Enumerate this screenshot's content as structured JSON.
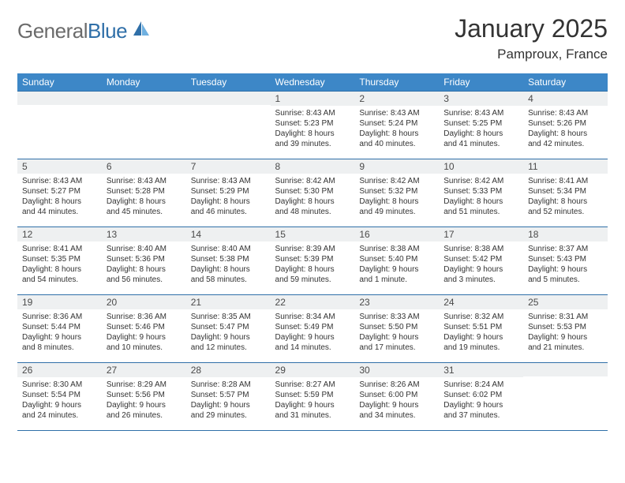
{
  "brand": {
    "part1": "General",
    "part2": "Blue"
  },
  "title": "January 2025",
  "location": "Pamproux, France",
  "colors": {
    "header_bg": "#3d87c7",
    "border": "#2f6fa8",
    "daynum_bg": "#eef0f1",
    "text": "#333333",
    "logo_gray": "#6b6b6b",
    "logo_blue": "#2f6fa8"
  },
  "dayHeaders": [
    "Sunday",
    "Monday",
    "Tuesday",
    "Wednesday",
    "Thursday",
    "Friday",
    "Saturday"
  ],
  "weeks": [
    [
      {
        "num": "",
        "lines": []
      },
      {
        "num": "",
        "lines": []
      },
      {
        "num": "",
        "lines": []
      },
      {
        "num": "1",
        "lines": [
          "Sunrise: 8:43 AM",
          "Sunset: 5:23 PM",
          "Daylight: 8 hours",
          "and 39 minutes."
        ]
      },
      {
        "num": "2",
        "lines": [
          "Sunrise: 8:43 AM",
          "Sunset: 5:24 PM",
          "Daylight: 8 hours",
          "and 40 minutes."
        ]
      },
      {
        "num": "3",
        "lines": [
          "Sunrise: 8:43 AM",
          "Sunset: 5:25 PM",
          "Daylight: 8 hours",
          "and 41 minutes."
        ]
      },
      {
        "num": "4",
        "lines": [
          "Sunrise: 8:43 AM",
          "Sunset: 5:26 PM",
          "Daylight: 8 hours",
          "and 42 minutes."
        ]
      }
    ],
    [
      {
        "num": "5",
        "lines": [
          "Sunrise: 8:43 AM",
          "Sunset: 5:27 PM",
          "Daylight: 8 hours",
          "and 44 minutes."
        ]
      },
      {
        "num": "6",
        "lines": [
          "Sunrise: 8:43 AM",
          "Sunset: 5:28 PM",
          "Daylight: 8 hours",
          "and 45 minutes."
        ]
      },
      {
        "num": "7",
        "lines": [
          "Sunrise: 8:43 AM",
          "Sunset: 5:29 PM",
          "Daylight: 8 hours",
          "and 46 minutes."
        ]
      },
      {
        "num": "8",
        "lines": [
          "Sunrise: 8:42 AM",
          "Sunset: 5:30 PM",
          "Daylight: 8 hours",
          "and 48 minutes."
        ]
      },
      {
        "num": "9",
        "lines": [
          "Sunrise: 8:42 AM",
          "Sunset: 5:32 PM",
          "Daylight: 8 hours",
          "and 49 minutes."
        ]
      },
      {
        "num": "10",
        "lines": [
          "Sunrise: 8:42 AM",
          "Sunset: 5:33 PM",
          "Daylight: 8 hours",
          "and 51 minutes."
        ]
      },
      {
        "num": "11",
        "lines": [
          "Sunrise: 8:41 AM",
          "Sunset: 5:34 PM",
          "Daylight: 8 hours",
          "and 52 minutes."
        ]
      }
    ],
    [
      {
        "num": "12",
        "lines": [
          "Sunrise: 8:41 AM",
          "Sunset: 5:35 PM",
          "Daylight: 8 hours",
          "and 54 minutes."
        ]
      },
      {
        "num": "13",
        "lines": [
          "Sunrise: 8:40 AM",
          "Sunset: 5:36 PM",
          "Daylight: 8 hours",
          "and 56 minutes."
        ]
      },
      {
        "num": "14",
        "lines": [
          "Sunrise: 8:40 AM",
          "Sunset: 5:38 PM",
          "Daylight: 8 hours",
          "and 58 minutes."
        ]
      },
      {
        "num": "15",
        "lines": [
          "Sunrise: 8:39 AM",
          "Sunset: 5:39 PM",
          "Daylight: 8 hours",
          "and 59 minutes."
        ]
      },
      {
        "num": "16",
        "lines": [
          "Sunrise: 8:38 AM",
          "Sunset: 5:40 PM",
          "Daylight: 9 hours",
          "and 1 minute."
        ]
      },
      {
        "num": "17",
        "lines": [
          "Sunrise: 8:38 AM",
          "Sunset: 5:42 PM",
          "Daylight: 9 hours",
          "and 3 minutes."
        ]
      },
      {
        "num": "18",
        "lines": [
          "Sunrise: 8:37 AM",
          "Sunset: 5:43 PM",
          "Daylight: 9 hours",
          "and 5 minutes."
        ]
      }
    ],
    [
      {
        "num": "19",
        "lines": [
          "Sunrise: 8:36 AM",
          "Sunset: 5:44 PM",
          "Daylight: 9 hours",
          "and 8 minutes."
        ]
      },
      {
        "num": "20",
        "lines": [
          "Sunrise: 8:36 AM",
          "Sunset: 5:46 PM",
          "Daylight: 9 hours",
          "and 10 minutes."
        ]
      },
      {
        "num": "21",
        "lines": [
          "Sunrise: 8:35 AM",
          "Sunset: 5:47 PM",
          "Daylight: 9 hours",
          "and 12 minutes."
        ]
      },
      {
        "num": "22",
        "lines": [
          "Sunrise: 8:34 AM",
          "Sunset: 5:49 PM",
          "Daylight: 9 hours",
          "and 14 minutes."
        ]
      },
      {
        "num": "23",
        "lines": [
          "Sunrise: 8:33 AM",
          "Sunset: 5:50 PM",
          "Daylight: 9 hours",
          "and 17 minutes."
        ]
      },
      {
        "num": "24",
        "lines": [
          "Sunrise: 8:32 AM",
          "Sunset: 5:51 PM",
          "Daylight: 9 hours",
          "and 19 minutes."
        ]
      },
      {
        "num": "25",
        "lines": [
          "Sunrise: 8:31 AM",
          "Sunset: 5:53 PM",
          "Daylight: 9 hours",
          "and 21 minutes."
        ]
      }
    ],
    [
      {
        "num": "26",
        "lines": [
          "Sunrise: 8:30 AM",
          "Sunset: 5:54 PM",
          "Daylight: 9 hours",
          "and 24 minutes."
        ]
      },
      {
        "num": "27",
        "lines": [
          "Sunrise: 8:29 AM",
          "Sunset: 5:56 PM",
          "Daylight: 9 hours",
          "and 26 minutes."
        ]
      },
      {
        "num": "28",
        "lines": [
          "Sunrise: 8:28 AM",
          "Sunset: 5:57 PM",
          "Daylight: 9 hours",
          "and 29 minutes."
        ]
      },
      {
        "num": "29",
        "lines": [
          "Sunrise: 8:27 AM",
          "Sunset: 5:59 PM",
          "Daylight: 9 hours",
          "and 31 minutes."
        ]
      },
      {
        "num": "30",
        "lines": [
          "Sunrise: 8:26 AM",
          "Sunset: 6:00 PM",
          "Daylight: 9 hours",
          "and 34 minutes."
        ]
      },
      {
        "num": "31",
        "lines": [
          "Sunrise: 8:24 AM",
          "Sunset: 6:02 PM",
          "Daylight: 9 hours",
          "and 37 minutes."
        ]
      },
      {
        "num": "",
        "lines": []
      }
    ]
  ]
}
